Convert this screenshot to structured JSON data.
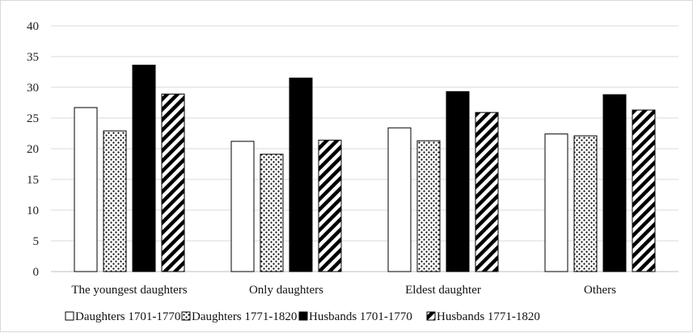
{
  "chart_data": {
    "type": "bar",
    "title": "",
    "xlabel": "",
    "ylabel": "",
    "ylim": [
      0,
      40
    ],
    "yticks": [
      0,
      5,
      10,
      15,
      20,
      25,
      30,
      35,
      40
    ],
    "grid": true,
    "legend_position": "bottom",
    "categories": [
      "The youngest daughters",
      "Only daughters",
      "Eldest daughter",
      "Others"
    ],
    "series": [
      {
        "name": "Daughters 1701-1770",
        "fill": "white",
        "values": [
          26.7,
          21.2,
          23.4,
          22.4
        ]
      },
      {
        "name": "Daughters 1771-1820",
        "fill": "dots",
        "values": [
          22.9,
          19.1,
          21.3,
          22.1
        ]
      },
      {
        "name": "Husbands 1701-1770",
        "fill": "black",
        "values": [
          33.6,
          31.5,
          29.3,
          28.8
        ]
      },
      {
        "name": "Husbands 1771-1820",
        "fill": "diagonal-stripes",
        "values": [
          28.9,
          21.4,
          25.9,
          26.3
        ]
      }
    ],
    "colors": {
      "bar_stroke": "#000000",
      "grid": "#d9d9d9",
      "axis": "#bfbfbf",
      "black_fill": "#000000",
      "white_fill": "#ffffff"
    }
  }
}
